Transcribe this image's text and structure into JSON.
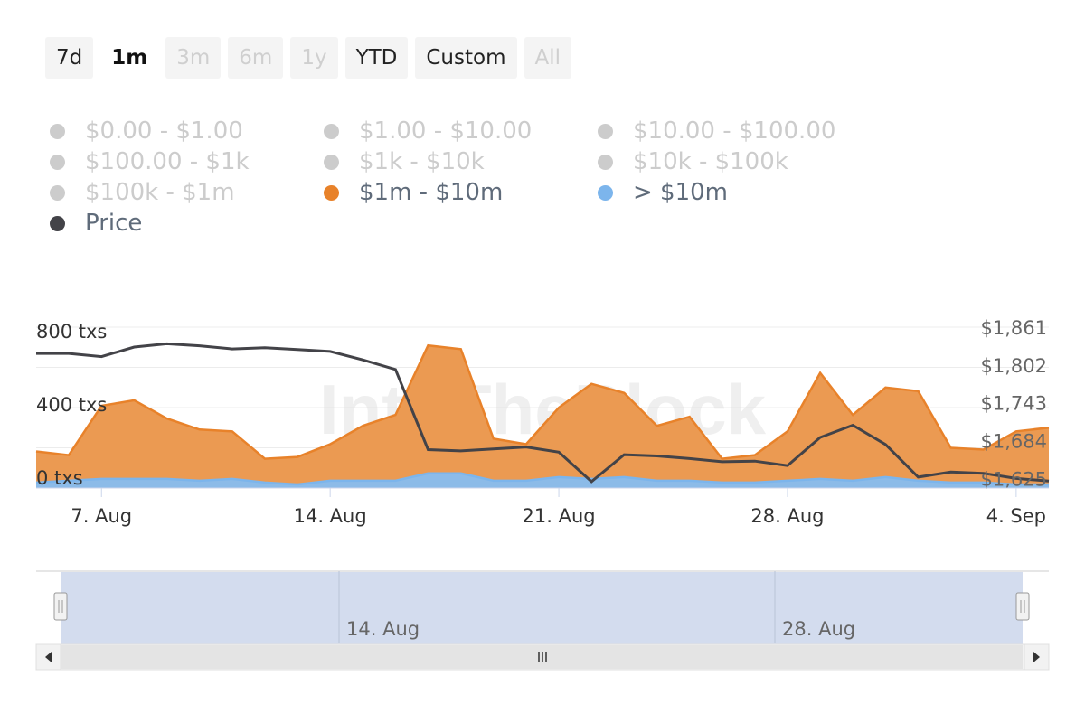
{
  "range_selector": {
    "buttons": [
      {
        "label": "7d",
        "state": "normal"
      },
      {
        "label": "1m",
        "state": "selected"
      },
      {
        "label": "3m",
        "state": "disabled"
      },
      {
        "label": "6m",
        "state": "disabled"
      },
      {
        "label": "1y",
        "state": "disabled"
      },
      {
        "label": "YTD",
        "state": "normal"
      },
      {
        "label": "Custom",
        "state": "normal"
      },
      {
        "label": "All",
        "state": "disabled"
      }
    ]
  },
  "legend": {
    "items": [
      {
        "label": "$0.00 - $1.00",
        "color": "#cccccc",
        "visible": false
      },
      {
        "label": "$1.00 - $10.00",
        "color": "#cccccc",
        "visible": false
      },
      {
        "label": "$10.00 - $100.00",
        "color": "#cccccc",
        "visible": false
      },
      {
        "label": "$100.00 - $1k",
        "color": "#cccccc",
        "visible": false
      },
      {
        "label": "$1k - $10k",
        "color": "#cccccc",
        "visible": false
      },
      {
        "label": "$10k - $100k",
        "color": "#cccccc",
        "visible": false
      },
      {
        "label": "$100k - $1m",
        "color": "#cccccc",
        "visible": false
      },
      {
        "label": "$1m - $10m",
        "color": "#e8822a",
        "visible": true
      },
      {
        "label": "> $10m",
        "color": "#7cb5ec",
        "visible": true
      },
      {
        "label": "Price",
        "color": "#434348",
        "visible": true
      }
    ]
  },
  "chart_data": {
    "type": "area",
    "watermark": "IntoTheBlock",
    "x": [
      "5 Aug",
      "6 Aug",
      "7 Aug",
      "8 Aug",
      "9 Aug",
      "10 Aug",
      "11 Aug",
      "12 Aug",
      "13 Aug",
      "14 Aug",
      "15 Aug",
      "16 Aug",
      "17 Aug",
      "18 Aug",
      "19 Aug",
      "20 Aug",
      "21 Aug",
      "22 Aug",
      "23 Aug",
      "24 Aug",
      "25 Aug",
      "26 Aug",
      "27 Aug",
      "28 Aug",
      "29 Aug",
      "30 Aug",
      "31 Aug",
      "1 Sep",
      "2 Sep",
      "3 Sep",
      "4 Sep",
      "5 Sep"
    ],
    "x_ticks": [
      "7. Aug",
      "14. Aug",
      "21. Aug",
      "28. Aug",
      "4. Sep"
    ],
    "y_left_ticks": [
      "0 txs",
      "400 txs",
      "800 txs"
    ],
    "y_left_range": [
      0,
      880
    ],
    "y_right_ticks": [
      "$1,625",
      "$1,684",
      "$1,743",
      "$1,802",
      "$1,861"
    ],
    "y_right_range": [
      1610,
      1861
    ],
    "series": [
      {
        "name": "$1m - $10m",
        "type": "area",
        "axis": "left",
        "color": "#e8822a",
        "values": [
          200,
          180,
          450,
          480,
          380,
          320,
          310,
          160,
          170,
          240,
          340,
          400,
          780,
          760,
          270,
          240,
          440,
          570,
          520,
          340,
          390,
          160,
          180,
          310,
          630,
          400,
          550,
          530,
          220,
          210,
          310,
          330
        ]
      },
      {
        "name": "> $10m",
        "type": "area",
        "axis": "left",
        "color": "#7cb5ec",
        "values": [
          30,
          40,
          50,
          50,
          50,
          40,
          50,
          30,
          20,
          40,
          40,
          40,
          80,
          80,
          40,
          40,
          60,
          50,
          60,
          40,
          40,
          30,
          30,
          40,
          50,
          40,
          60,
          40,
          30,
          30,
          20,
          20
        ]
      },
      {
        "name": "Price",
        "type": "line",
        "axis": "right",
        "color": "#434348",
        "values": [
          1820,
          1820,
          1815,
          1830,
          1835,
          1832,
          1827,
          1829,
          1826,
          1823,
          1810,
          1795,
          1670,
          1668,
          1671,
          1674,
          1666,
          1620,
          1662,
          1660,
          1656,
          1651,
          1652,
          1645,
          1689,
          1708,
          1678,
          1627,
          1635,
          1633,
          1625,
          1621
        ]
      }
    ]
  },
  "navigator": {
    "ticks": [
      "14. Aug",
      "28. Aug"
    ],
    "window": [
      0,
      1
    ]
  }
}
